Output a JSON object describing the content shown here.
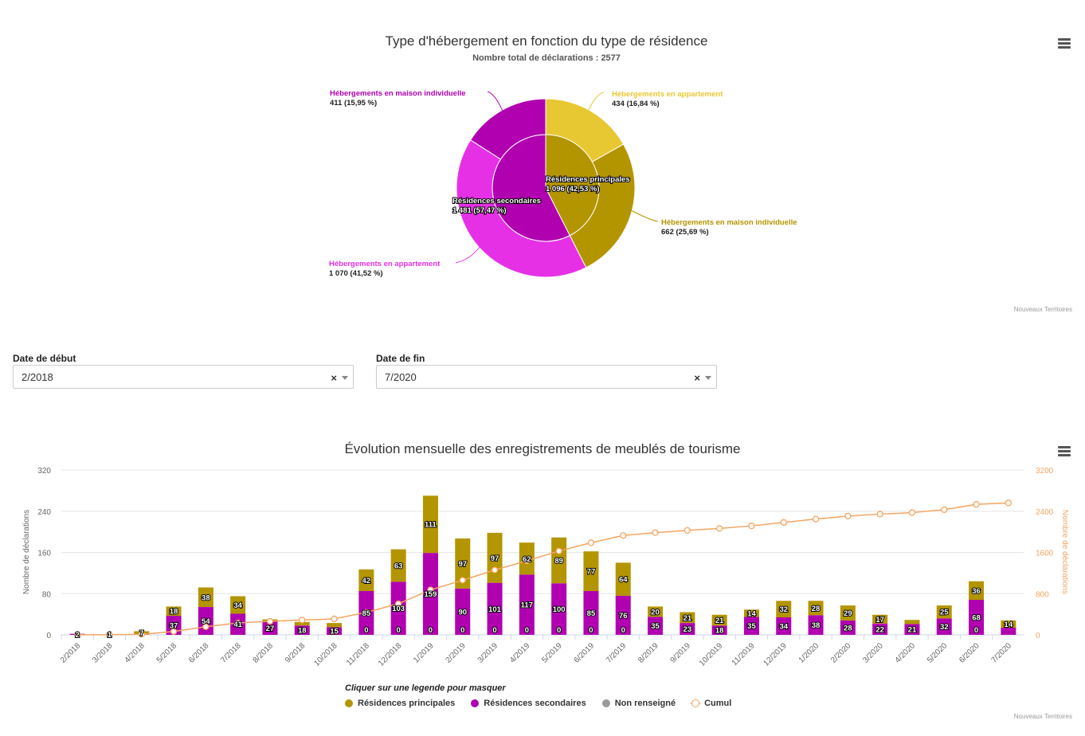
{
  "pie": {
    "title": "Type d'hébergement en fonction du type de résidence",
    "subtitle": "Nombre total de déclarations : 2577",
    "credits": "Nouveaux Territoires",
    "inner_labels": {
      "principales_name": "Résidences principales",
      "principales_value": "1 096 (42,53 %)",
      "secondaires_name": "Résidences secondaires",
      "secondaires_value": "1 481 (57,47 %)"
    },
    "outer_labels": {
      "sec_maison_name": "Hébergements en maison individuelle",
      "sec_maison_value": "411 (15,95 %)",
      "pri_appart_name": "Hébergements en appartement",
      "pri_appart_value": "434 (16,84 %)",
      "pri_maison_name": "Hébergements en maison individuelle",
      "pri_maison_value": "662 (25,69 %)",
      "sec_appart_name": "Hébergements en appartement",
      "sec_appart_value": "1 070 (41,52 %)"
    },
    "colors": {
      "principales": "#B39500",
      "secondaires": "#B000B0",
      "pri_appart": "#E8C832",
      "pri_maison": "#B39500",
      "sec_appart": "#E630E6",
      "sec_maison": "#B000B0"
    }
  },
  "filters": {
    "start_label": "Date de début",
    "start_value": "2/2018",
    "end_label": "Date de fin",
    "end_value": "7/2020",
    "clear_symbol": "×"
  },
  "bar": {
    "title": "Évolution mensuelle des enregistrements de meublés de tourisme",
    "credits": "Nouveaux Territoires",
    "legend_hint": "Cliquer sur une legende pour masquer",
    "legend": [
      {
        "name": "Résidences principales",
        "color": "#B39500"
      },
      {
        "name": "Résidences secondaires",
        "color": "#B000B0"
      },
      {
        "name": "Non renseigné",
        "color": "#999999"
      },
      {
        "name": "Cumul",
        "color": "#F4A460"
      }
    ]
  },
  "chart_data": [
    {
      "type": "pie",
      "title": "Type d'hébergement en fonction du type de résidence",
      "subtitle": "Nombre total de déclarations : 2577",
      "inner": [
        {
          "name": "Résidences principales",
          "value": 1096,
          "percent": 42.53
        },
        {
          "name": "Résidences secondaires",
          "value": 1481,
          "percent": 57.47
        }
      ],
      "outer": [
        {
          "parent": "Résidences principales",
          "name": "Hébergements en appartement",
          "value": 434,
          "percent": 16.84
        },
        {
          "parent": "Résidences principales",
          "name": "Hébergements en maison individuelle",
          "value": 662,
          "percent": 25.69
        },
        {
          "parent": "Résidences secondaires",
          "name": "Hébergements en appartement",
          "value": 1070,
          "percent": 41.52
        },
        {
          "parent": "Résidences secondaires",
          "name": "Hébergements en maison individuelle",
          "value": 411,
          "percent": 15.95
        }
      ]
    },
    {
      "type": "bar",
      "stacked": true,
      "title": "Évolution mensuelle des enregistrements de meublés de tourisme",
      "categories": [
        "2/2018",
        "3/2018",
        "4/2018",
        "5/2018",
        "6/2018",
        "7/2018",
        "8/2018",
        "9/2018",
        "10/2018",
        "11/2018",
        "12/2018",
        "1/2019",
        "2/2019",
        "3/2019",
        "4/2019",
        "5/2019",
        "6/2019",
        "7/2019",
        "8/2019",
        "9/2019",
        "10/2019",
        "11/2019",
        "12/2019",
        "1/2020",
        "2/2020",
        "3/2020",
        "4/2020",
        "5/2020",
        "6/2020",
        "7/2020"
      ],
      "ylabel": "Nombre de déclarations",
      "ylabel_right": "Nombre de déclarations",
      "ylim": [
        0,
        320
      ],
      "yticks": [
        0,
        80,
        160,
        240,
        320
      ],
      "ylim_right": [
        0,
        3200
      ],
      "yticks_right": [
        0,
        800,
        1600,
        2400,
        3200
      ],
      "series": [
        {
          "name": "Résidences principales",
          "axis": "left",
          "values": [
            0,
            0,
            7,
            18,
            38,
            34,
            3,
            7,
            8,
            42,
            63,
            111,
            97,
            97,
            62,
            89,
            77,
            64,
            20,
            21,
            21,
            14,
            32,
            28,
            29,
            17,
            8,
            25,
            36,
            14
          ],
          "labels": [
            null,
            null,
            "7",
            "18",
            "38",
            "34",
            null,
            null,
            null,
            "42",
            "63",
            "111",
            "97",
            "97",
            "62",
            "89",
            "77",
            "64",
            "20",
            "21",
            "21",
            "14",
            "32",
            "28",
            "29",
            "17",
            null,
            "25",
            "36",
            "14"
          ]
        },
        {
          "name": "Résidences secondaires",
          "axis": "left",
          "values": [
            2,
            1,
            0,
            37,
            54,
            41,
            27,
            18,
            15,
            85,
            103,
            159,
            90,
            101,
            117,
            100,
            85,
            76,
            35,
            23,
            18,
            35,
            34,
            38,
            28,
            22,
            21,
            32,
            68,
            14
          ],
          "labels": [
            "2",
            "1",
            null,
            "37",
            "54",
            "41",
            "27",
            "18",
            "15",
            "85",
            "103",
            "159",
            "90",
            "101",
            "117",
            "100",
            "85",
            "76",
            "35",
            "23",
            "18",
            "35",
            "34",
            "38",
            "28",
            "22",
            "21",
            "32",
            "68",
            null
          ]
        },
        {
          "name": "Non renseigné",
          "axis": "left",
          "values": [
            0,
            0,
            0,
            0,
            0,
            0,
            0,
            0,
            0,
            0,
            0,
            0,
            0,
            0,
            0,
            0,
            0,
            0,
            0,
            0,
            0,
            0,
            0,
            0,
            0,
            0,
            0,
            0,
            0,
            0
          ],
          "labels": [
            null,
            null,
            null,
            null,
            null,
            null,
            null,
            null,
            null,
            "0",
            "0",
            "0",
            "0",
            "0",
            "0",
            "0",
            "0",
            "0",
            null,
            null,
            null,
            null,
            null,
            null,
            null,
            null,
            null,
            null,
            "0",
            null
          ]
        },
        {
          "name": "Cumul",
          "axis": "right",
          "type": "line",
          "values": [
            2,
            3,
            10,
            65,
            157,
            232,
            262,
            287,
            310,
            437,
            603,
            873,
            1060,
            1258,
            1437,
            1626,
            1788,
            1928,
            1983,
            2027,
            2066,
            2115,
            2181,
            2247,
            2304,
            2343,
            2372,
            2429,
            2533,
            2561
          ]
        }
      ]
    }
  ]
}
